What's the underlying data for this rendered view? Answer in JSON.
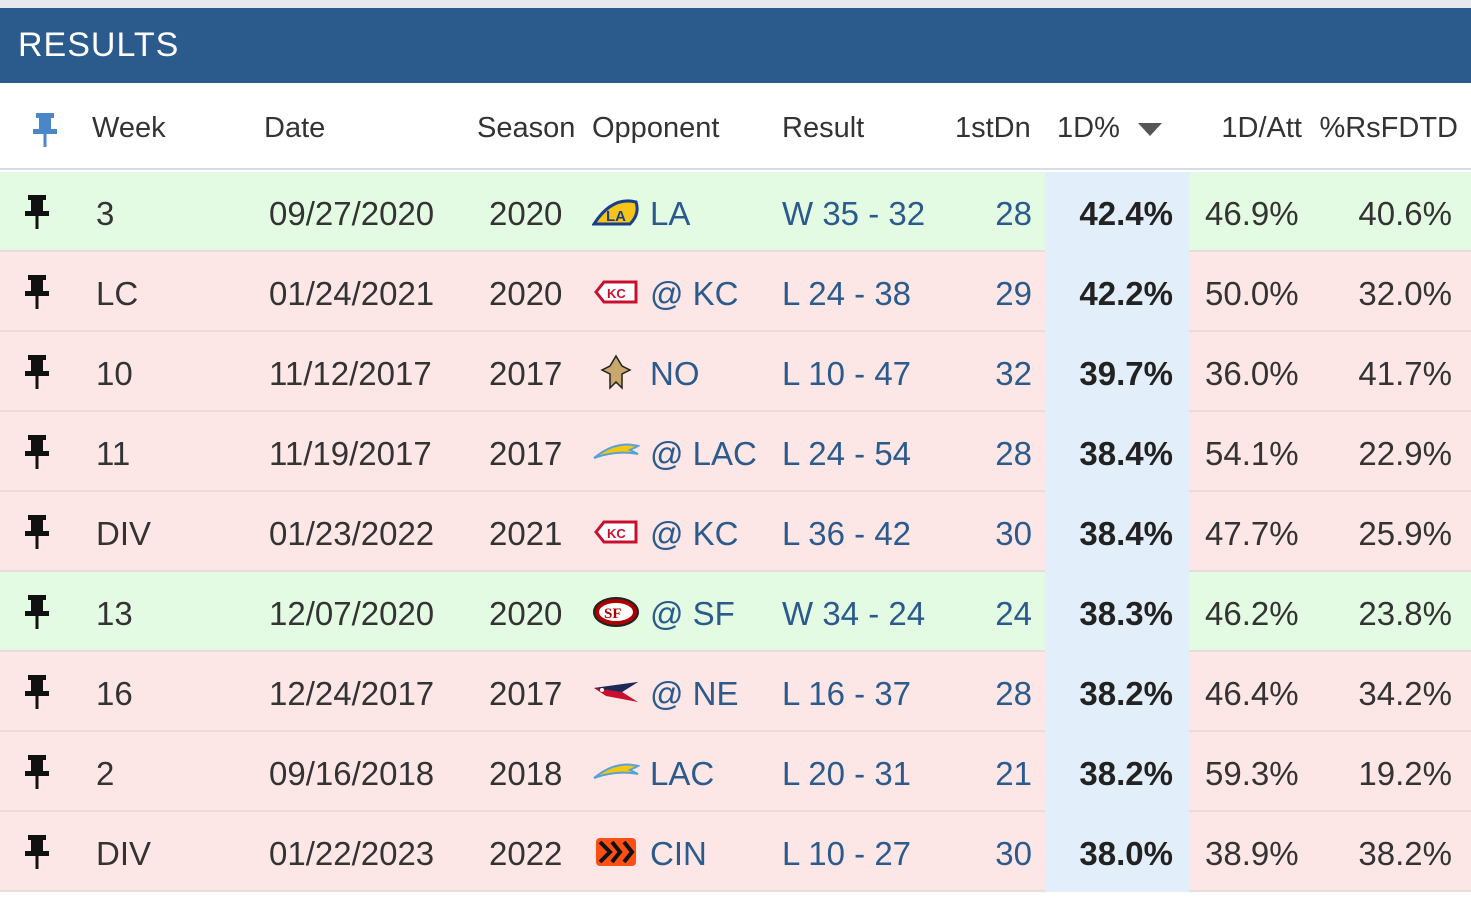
{
  "section": {
    "title": "RESULTS"
  },
  "columns": {
    "week": "Week",
    "date": "Date",
    "season": "Season",
    "opponent": "Opponent",
    "result": "Result",
    "firstdn": "1stDn",
    "pct": "1D%",
    "per_att": "1D/Att",
    "rsfdtd": "%RsFDTD"
  },
  "sort": {
    "column": "1D%",
    "direction": "descending"
  },
  "colors": {
    "header": "#2b5a8c",
    "win_row": "#e3fbe3",
    "loss_row": "#fde6e6",
    "sorted_column": "#e2eef9"
  },
  "rows": [
    {
      "week": "3",
      "date": "09/27/2020",
      "season": "2020",
      "opp_logo": "rams-logo-icon",
      "opponent": "LA",
      "result": "W 35 - 32",
      "outcome": "win",
      "firstdn": "28",
      "pct": "42.4%",
      "per_att": "46.9%",
      "rsfdtd": "40.6%"
    },
    {
      "week": "LC",
      "date": "01/24/2021",
      "season": "2020",
      "opp_logo": "chiefs-logo-icon",
      "opponent": "@ KC",
      "result": "L 24 - 38",
      "outcome": "loss",
      "firstdn": "29",
      "pct": "42.2%",
      "per_att": "50.0%",
      "rsfdtd": "32.0%"
    },
    {
      "week": "10",
      "date": "11/12/2017",
      "season": "2017",
      "opp_logo": "saints-logo-icon",
      "opponent": "NO",
      "result": "L 10 - 47",
      "outcome": "loss",
      "firstdn": "32",
      "pct": "39.7%",
      "per_att": "36.0%",
      "rsfdtd": "41.7%"
    },
    {
      "week": "11",
      "date": "11/19/2017",
      "season": "2017",
      "opp_logo": "chargers-logo-icon",
      "opponent": "@ LAC",
      "result": "L 24 - 54",
      "outcome": "loss",
      "firstdn": "28",
      "pct": "38.4%",
      "per_att": "54.1%",
      "rsfdtd": "22.9%"
    },
    {
      "week": "DIV",
      "date": "01/23/2022",
      "season": "2021",
      "opp_logo": "chiefs-logo-icon",
      "opponent": "@ KC",
      "result": "L 36 - 42",
      "outcome": "loss",
      "firstdn": "30",
      "pct": "38.4%",
      "per_att": "47.7%",
      "rsfdtd": "25.9%"
    },
    {
      "week": "13",
      "date": "12/07/2020",
      "season": "2020",
      "opp_logo": "49ers-logo-icon",
      "opponent": "@ SF",
      "result": "W 34 - 24",
      "outcome": "win",
      "firstdn": "24",
      "pct": "38.3%",
      "per_att": "46.2%",
      "rsfdtd": "23.8%"
    },
    {
      "week": "16",
      "date": "12/24/2017",
      "season": "2017",
      "opp_logo": "patriots-logo-icon",
      "opponent": "@ NE",
      "result": "L 16 - 37",
      "outcome": "loss",
      "firstdn": "28",
      "pct": "38.2%",
      "per_att": "46.4%",
      "rsfdtd": "34.2%"
    },
    {
      "week": "2",
      "date": "09/16/2018",
      "season": "2018",
      "opp_logo": "chargers-logo-icon",
      "opponent": "LAC",
      "result": "L 20 - 31",
      "outcome": "loss",
      "firstdn": "21",
      "pct": "38.2%",
      "per_att": "59.3%",
      "rsfdtd": "19.2%"
    },
    {
      "week": "DIV",
      "date": "01/22/2023",
      "season": "2022",
      "opp_logo": "bengals-logo-icon",
      "opponent": "CIN",
      "result": "L 10 - 27",
      "outcome": "loss",
      "firstdn": "30",
      "pct": "38.0%",
      "per_att": "38.9%",
      "rsfdtd": "38.2%"
    }
  ]
}
